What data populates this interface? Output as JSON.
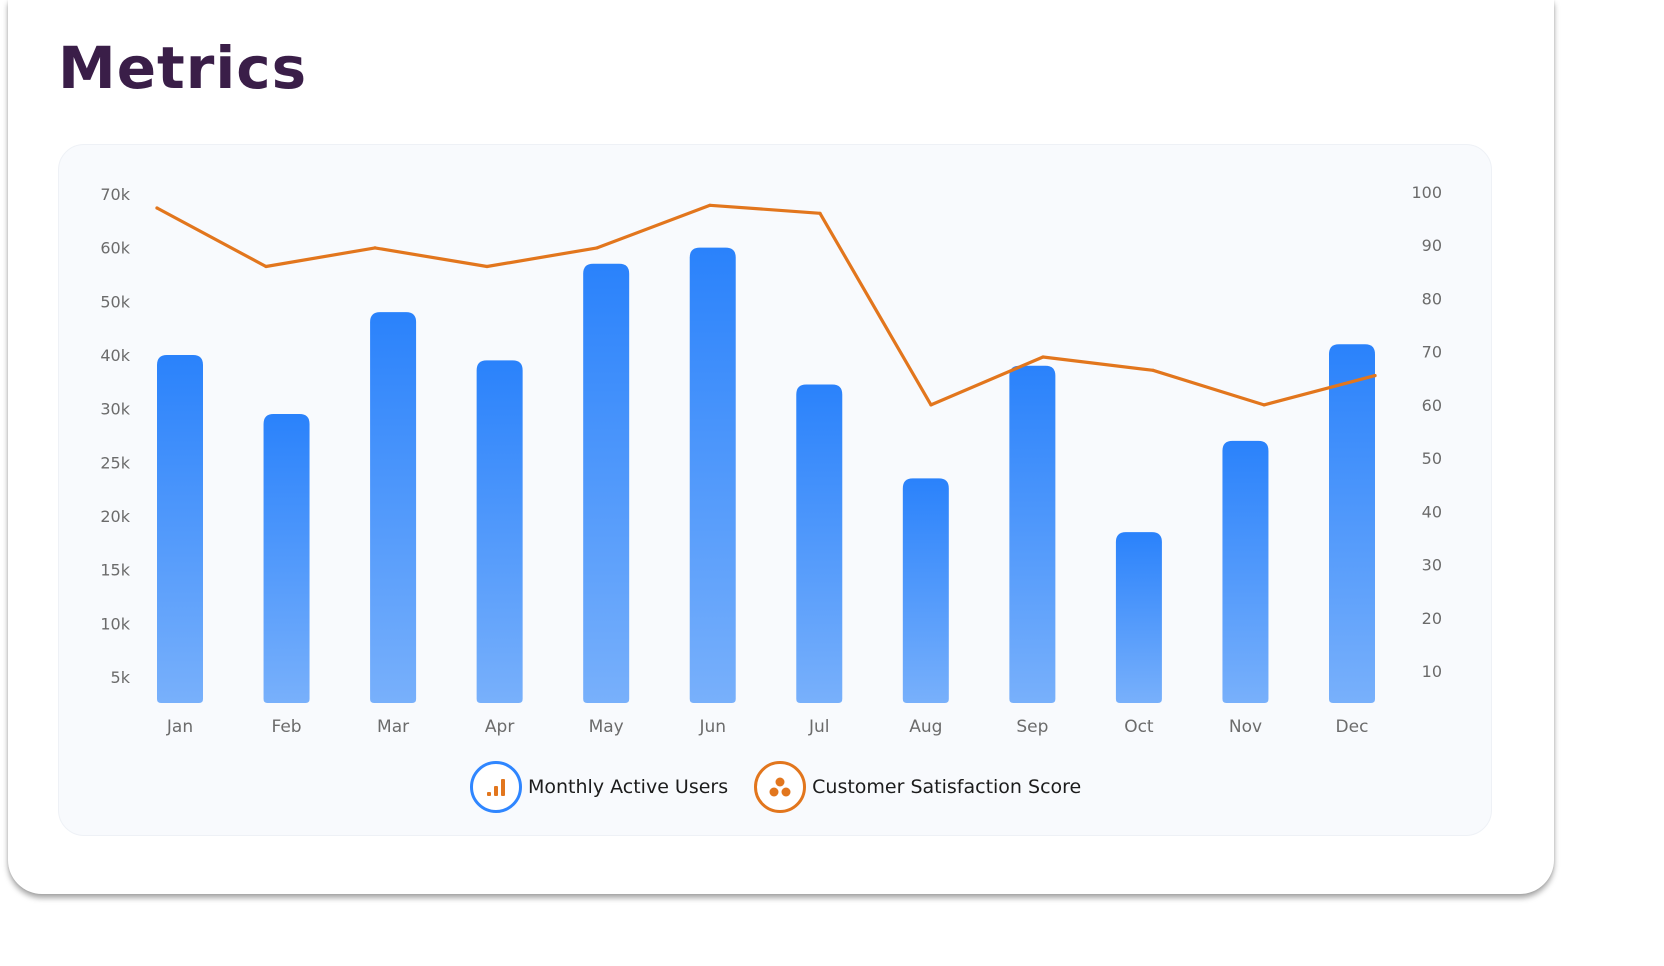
{
  "page": {
    "title": "Metrics"
  },
  "legend": [
    {
      "label": "Monthly Active Users",
      "icon": "bar-chart-icon",
      "color": "#2f86ff"
    },
    {
      "label": "Customer Satisfaction Score",
      "icon": "three-dots-icon",
      "color": "#e2761d"
    }
  ],
  "chart_data": {
    "type": "bar",
    "title": "",
    "categories": [
      "Jan",
      "Feb",
      "Mar",
      "Apr",
      "May",
      "Jun",
      "Jul",
      "Aug",
      "Sep",
      "Oct",
      "Nov",
      "Dec"
    ],
    "left_axis": {
      "ticks": [
        "5k",
        "10k",
        "15k",
        "20k",
        "25k",
        "30k",
        "40k",
        "50k",
        "60k",
        "70k"
      ]
    },
    "right_axis": {
      "ticks": [
        "10",
        "20",
        "30",
        "40",
        "50",
        "60",
        "70",
        "80",
        "90",
        "100"
      ]
    },
    "series": [
      {
        "name": "Monthly Active Users",
        "type": "bar",
        "axis": "left",
        "color": "#2f86ff",
        "values": [
          40000,
          29500,
          48000,
          39000,
          57000,
          60000,
          34500,
          23500,
          38000,
          18500,
          27000,
          42000
        ]
      },
      {
        "name": "Customer Satisfaction Score",
        "type": "line",
        "axis": "right",
        "color": "#e2761d",
        "values": [
          97,
          86,
          89.5,
          86,
          89.5,
          97.5,
          96,
          60,
          69,
          66.5,
          60,
          65.5
        ]
      }
    ],
    "grid": false,
    "legend_position": "bottom-center"
  }
}
